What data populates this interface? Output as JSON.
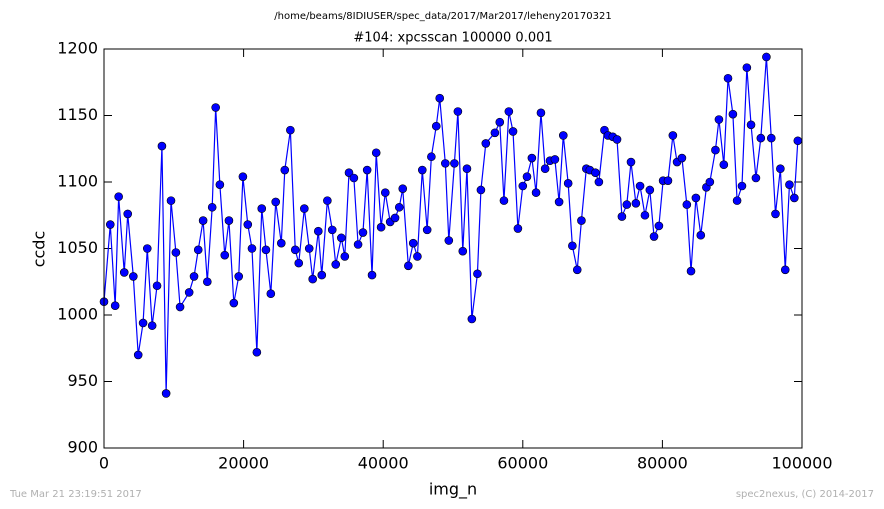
{
  "chart_data": {
    "type": "line",
    "title": "/home/beams/8IDIUSER/spec_data/2017/Mar2017/leheny20170321",
    "subtitle": "#104: xpcsscan 100000 0.001",
    "x_label": "img_n",
    "y_label": "ccdc",
    "footer_left": "Tue Mar 21 23:19:51 2017",
    "footer_right": "spec2nexus, (C) 2014-2017",
    "color": "#0000ff",
    "x": [
      0,
      900,
      1600,
      2100,
      2900,
      3400,
      4200,
      4900,
      5600,
      6200,
      6900,
      7600,
      8300,
      8900,
      9600,
      10300,
      10900,
      12200,
      12900,
      13500,
      14200,
      14800,
      15500,
      16000,
      16600,
      17300,
      17900,
      18600,
      19300,
      19900,
      20600,
      21200,
      21900,
      22600,
      23200,
      23900,
      24600,
      25400,
      25900,
      26700,
      27400,
      27900,
      28700,
      29400,
      29900,
      30700,
      31200,
      32000,
      32700,
      33200,
      34000,
      34500,
      35100,
      35800,
      36400,
      37100,
      37700,
      38400,
      39000,
      39700,
      40300,
      41000,
      41700,
      42300,
      42800,
      43600,
      44300,
      44900,
      45600,
      46300,
      46900,
      47600,
      48100,
      48900,
      49400,
      50200,
      50700,
      51400,
      52000,
      52700,
      53500,
      54000,
      54700,
      56000,
      56700,
      57300,
      58000,
      58600,
      59300,
      60000,
      60600,
      61300,
      61900,
      62600,
      63200,
      63900,
      64600,
      65200,
      65800,
      66500,
      67100,
      67800,
      68400,
      69100,
      69600,
      70400,
      70900,
      71700,
      72200,
      72900,
      73500,
      74200,
      74900,
      75500,
      76200,
      76800,
      77500,
      78200,
      78800,
      79500,
      80100,
      80800,
      81500,
      82100,
      82800,
      83500,
      84100,
      84800,
      85500,
      86300,
      86800,
      87600,
      88100,
      88800,
      89400,
      90100,
      90700,
      91400,
      92100,
      92700,
      93400,
      94100,
      94900,
      95600,
      96200,
      96900,
      97600,
      98200,
      98900,
      99400
    ],
    "values": [
      1010,
      1068,
      1007,
      1089,
      1032,
      1076,
      1029,
      970,
      994,
      1050,
      992,
      1022,
      1127,
      941,
      1086,
      1047,
      1006,
      1017,
      1029,
      1049,
      1071,
      1025,
      1081,
      1156,
      1098,
      1045,
      1071,
      1009,
      1029,
      1104,
      1068,
      1050,
      972,
      1080,
      1049,
      1016,
      1085,
      1054,
      1109,
      1139,
      1049,
      1039,
      1080,
      1050,
      1027,
      1063,
      1030,
      1086,
      1064,
      1038,
      1058,
      1044,
      1107,
      1103,
      1053,
      1062,
      1109,
      1030,
      1122,
      1066,
      1092,
      1070,
      1073,
      1081,
      1095,
      1037,
      1054,
      1044,
      1109,
      1064,
      1119,
      1142,
      1163,
      1114,
      1056,
      1114,
      1153,
      1048,
      1110,
      997,
      1031,
      1094,
      1129,
      1137,
      1145,
      1086,
      1153,
      1138,
      1065,
      1097,
      1104,
      1118,
      1092,
      1152,
      1110,
      1116,
      1117,
      1085,
      1135,
      1099,
      1052,
      1034,
      1071,
      1110,
      1109,
      1107,
      1100,
      1139,
      1135,
      1134,
      1132,
      1074,
      1083,
      1115,
      1084,
      1097,
      1075,
      1094,
      1059,
      1067,
      1101,
      1101,
      1135,
      1115,
      1118,
      1083,
      1033,
      1088,
      1060,
      1096,
      1100,
      1124,
      1147,
      1113,
      1178,
      1151,
      1086,
      1097,
      1186,
      1143,
      1103,
      1133,
      1194,
      1133,
      1076,
      1110,
      1034,
      1098,
      1088,
      1131
    ],
    "xlim": [
      0,
      100000
    ],
    "xticks": [
      0,
      20000,
      40000,
      60000,
      80000,
      100000
    ],
    "ylim": [
      900,
      1200
    ],
    "yticks": [
      900,
      950,
      1000,
      1050,
      1100,
      1150,
      1200
    ]
  }
}
